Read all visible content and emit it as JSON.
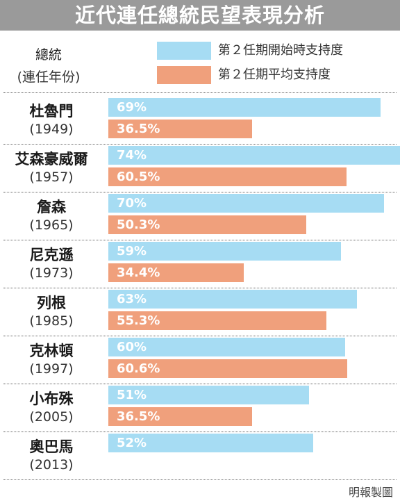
{
  "chart_data": {
    "type": "bar",
    "orientation": "horizontal",
    "title": "近代連任總統民望表現分析",
    "category_axis_label": "總統",
    "category_axis_sublabel": "(連任年份)",
    "categories": [
      {
        "name": "杜魯門",
        "year": "(1949)"
      },
      {
        "name": "艾森豪威爾",
        "year": "(1957)"
      },
      {
        "name": "詹森",
        "year": "(1965)"
      },
      {
        "name": "尼克遜",
        "year": "(1973)"
      },
      {
        "name": "列根",
        "year": "(1985)"
      },
      {
        "name": "克林頓",
        "year": "(1997)"
      },
      {
        "name": "小布殊",
        "year": "(2005)"
      },
      {
        "name": "奧巴馬",
        "year": "(2013)"
      }
    ],
    "series": [
      {
        "name": "第２任期開始時支持度",
        "color": "#a6dcf3",
        "values": [
          69,
          74,
          70,
          59,
          63,
          60,
          51,
          52
        ],
        "labels": [
          "69%",
          "74%",
          "70%",
          "59%",
          "63%",
          "60%",
          "51%",
          "52%"
        ]
      },
      {
        "name": "第２任期平均支持度",
        "color": "#f0a07c",
        "values": [
          36.5,
          60.5,
          50.3,
          34.4,
          55.3,
          60.6,
          36.5,
          null
        ],
        "labels": [
          "36.5%",
          "60.5%",
          "50.3%",
          "34.4%",
          "55.3%",
          "60.6%",
          "36.5%",
          ""
        ]
      }
    ],
    "xlim": [
      0,
      74
    ],
    "grid": false,
    "legend_position": "top-right"
  },
  "credit": "明報製圖"
}
